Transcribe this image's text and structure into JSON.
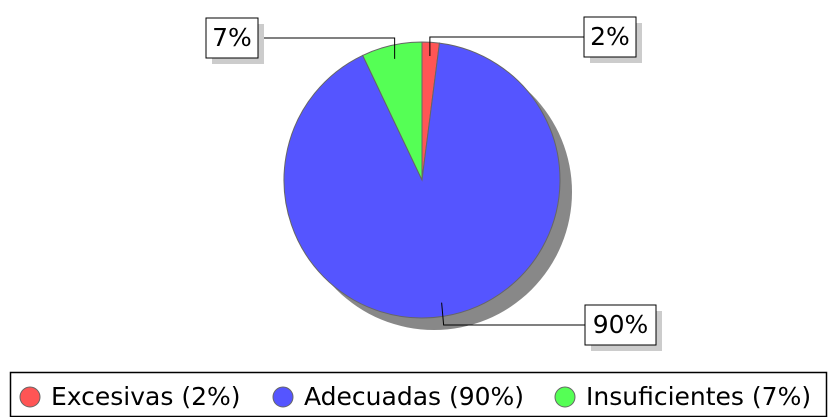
{
  "chart_data": {
    "type": "pie",
    "categories": [
      "Excesivas (2%)",
      "Adecuadas (90%)",
      "Insuficientes (7%)"
    ],
    "values": [
      2,
      90,
      7
    ],
    "value_labels": [
      "2%",
      "90%",
      "7%"
    ],
    "colors": [
      "#ff5555",
      "#5555ff",
      "#55ff55"
    ],
    "legend": "bottom"
  }
}
